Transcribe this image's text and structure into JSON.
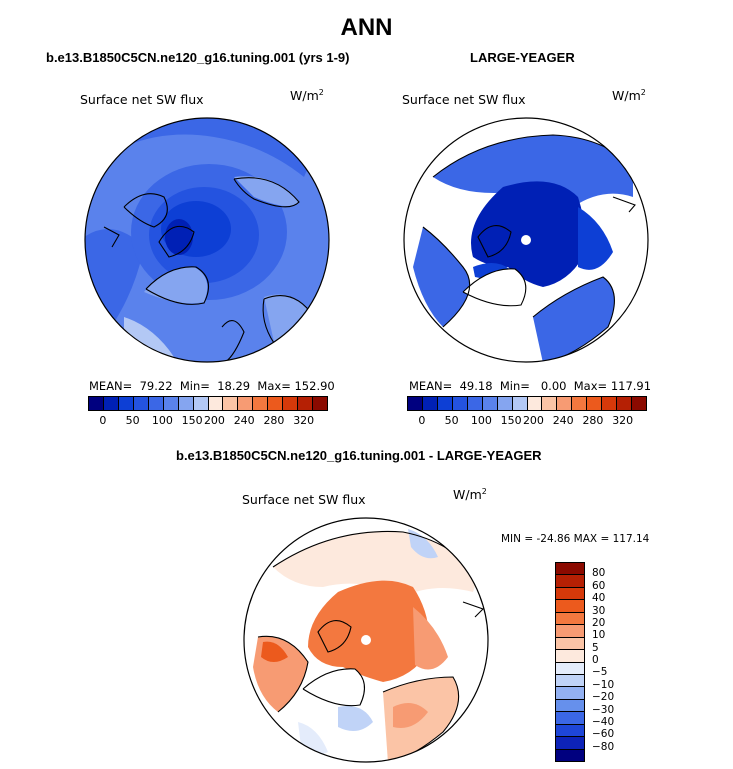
{
  "title": "ANN",
  "colors": {
    "blues": [
      "#00007f",
      "#0020b5",
      "#0d3fd5",
      "#2453e0",
      "#3b67e6",
      "#5a82ec",
      "#85a5f0",
      "#b3c8f5"
    ],
    "diff_neg": [
      "#00007f",
      "#0d23b8",
      "#1e46d8",
      "#3b67e6",
      "#6690ec",
      "#93b1f2",
      "#c0d3f7",
      "#e4ecfb"
    ],
    "diff_pos": [
      "#fde9dd",
      "#fbc4a6",
      "#f79b73",
      "#f3783f",
      "#ec5a1d",
      "#d6390a",
      "#b52004",
      "#8b0a00"
    ]
  },
  "chart_data": [
    {
      "type": "heatmap",
      "title": "b.e13.B1850C5CN.ne120_g16.tuning.001 (yrs 1-9)",
      "variable": "Surface net SW flux",
      "units": "W/m²",
      "projection": "north polar stereographic",
      "stats": {
        "mean": 79.22,
        "min": 18.29,
        "max": 152.9
      },
      "stats_text": "MEAN=  79.22  Min=  18.29  Max= 152.90",
      "colorbar": {
        "orientation": "horizontal",
        "tick_labels": [
          "0",
          "50",
          "100",
          "150",
          "200",
          "240",
          "280",
          "320"
        ],
        "levels": [
          0,
          25,
          50,
          75,
          100,
          125,
          150,
          175,
          200,
          220,
          240,
          260,
          280,
          300,
          320
        ],
        "colors": 16
      }
    },
    {
      "type": "heatmap",
      "title": "LARGE-YEAGER",
      "variable": "Surface net SW flux",
      "units": "W/m²",
      "projection": "north polar stereographic",
      "stats": {
        "mean": 49.18,
        "min": 0.0,
        "max": 117.91
      },
      "stats_text": "MEAN=  49.18  Min=   0.00  Max= 117.91",
      "colorbar": {
        "orientation": "horizontal",
        "tick_labels": [
          "0",
          "50",
          "100",
          "150",
          "200",
          "240",
          "280",
          "320"
        ],
        "levels": [
          0,
          25,
          50,
          75,
          100,
          125,
          150,
          175,
          200,
          220,
          240,
          260,
          280,
          300,
          320
        ],
        "colors": 16
      }
    },
    {
      "type": "heatmap",
      "title": "b.e13.B1850C5CN.ne120_g16.tuning.001 - LARGE-YEAGER",
      "variable": "Surface net SW flux",
      "units": "W/m²",
      "projection": "north polar stereographic",
      "stats": {
        "min": -24.86,
        "max": 117.14
      },
      "stats_text": "MIN = -24.86 MAX = 117.14",
      "colorbar": {
        "orientation": "vertical",
        "levels": [
          -80,
          -60,
          -40,
          -30,
          -20,
          -10,
          -5,
          0,
          5,
          10,
          20,
          30,
          40,
          60,
          80
        ],
        "tick_labels": [
          "80",
          "60",
          "40",
          "30",
          "20",
          "10",
          "5",
          "0",
          "−5",
          "−10",
          "−20",
          "−30",
          "−40",
          "−60",
          "−80"
        ]
      }
    }
  ]
}
